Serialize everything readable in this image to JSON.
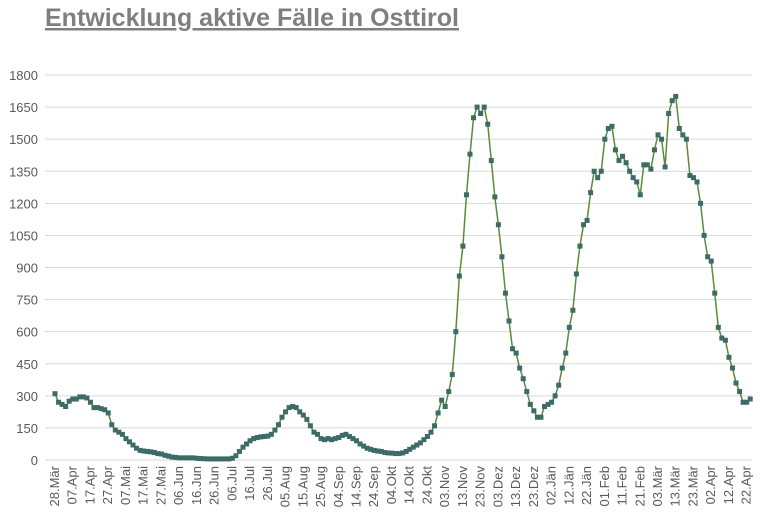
{
  "chart_data": {
    "type": "line",
    "title": "Entwicklung aktive Fälle in Osttirol",
    "categories": [
      "28.Mär",
      null,
      null,
      null,
      null,
      "07.Apr",
      null,
      null,
      null,
      null,
      "17.Apr",
      null,
      null,
      null,
      null,
      "27.Apr",
      null,
      null,
      null,
      null,
      "07.Mai",
      null,
      null,
      null,
      null,
      "17.Mai",
      null,
      null,
      null,
      null,
      "27.Mai",
      null,
      null,
      null,
      null,
      "06.Jun",
      null,
      null,
      null,
      null,
      "16.Jun",
      null,
      null,
      null,
      null,
      "26.Jun",
      null,
      null,
      null,
      null,
      "06.Jul",
      null,
      null,
      null,
      null,
      "16.Jul",
      null,
      null,
      null,
      null,
      "26.Jul",
      null,
      null,
      null,
      null,
      "05.Aug",
      null,
      null,
      null,
      null,
      "15.Aug",
      null,
      null,
      null,
      null,
      "25.Aug",
      null,
      null,
      null,
      null,
      "04.Sep",
      null,
      null,
      null,
      null,
      "14.Sep",
      null,
      null,
      null,
      null,
      "24.Sep",
      null,
      null,
      null,
      null,
      "04.Okt",
      null,
      null,
      null,
      null,
      "14.Okt",
      null,
      null,
      null,
      null,
      "24.Okt",
      null,
      null,
      null,
      null,
      "03.Nov",
      null,
      null,
      null,
      null,
      "13.Nov",
      null,
      null,
      null,
      null,
      "23.Nov",
      null,
      null,
      null,
      null,
      "03.Dez",
      null,
      null,
      null,
      null,
      "13.Dez",
      null,
      null,
      null,
      null,
      "23.Dez",
      null,
      null,
      null,
      null,
      "02.Jän",
      null,
      null,
      null,
      null,
      "12.Jän",
      null,
      null,
      null,
      null,
      "22.Jän",
      null,
      null,
      null,
      null,
      "01.Feb",
      null,
      null,
      null,
      null,
      "11.Feb",
      null,
      null,
      null,
      null,
      "21.Feb",
      null,
      null,
      null,
      null,
      "03.Mär",
      null,
      null,
      null,
      null,
      "13.Mär",
      null,
      null,
      null,
      null,
      "23.Mär",
      null,
      null,
      null,
      null,
      "02.Apr",
      null,
      null,
      null,
      null,
      "12.Apr",
      null,
      null,
      null,
      null,
      "22.Apr",
      null
    ],
    "values": [
      310,
      270,
      260,
      250,
      275,
      285,
      285,
      295,
      295,
      290,
      270,
      245,
      245,
      240,
      235,
      220,
      165,
      140,
      130,
      120,
      100,
      85,
      70,
      55,
      45,
      42,
      40,
      38,
      35,
      30,
      28,
      22,
      18,
      14,
      12,
      10,
      10,
      10,
      10,
      10,
      8,
      7,
      6,
      5,
      5,
      5,
      5,
      5,
      5,
      5,
      8,
      20,
      40,
      60,
      75,
      90,
      100,
      105,
      108,
      110,
      112,
      120,
      140,
      165,
      200,
      225,
      245,
      250,
      245,
      225,
      210,
      190,
      160,
      130,
      120,
      100,
      95,
      100,
      95,
      100,
      105,
      115,
      120,
      110,
      100,
      90,
      75,
      65,
      55,
      50,
      45,
      42,
      40,
      35,
      33,
      32,
      30,
      30,
      33,
      40,
      50,
      60,
      70,
      80,
      95,
      110,
      130,
      160,
      220,
      280,
      250,
      320,
      400,
      600,
      860,
      1000,
      1240,
      1430,
      1600,
      1650,
      1620,
      1650,
      1570,
      1400,
      1230,
      1100,
      950,
      780,
      650,
      520,
      500,
      430,
      380,
      320,
      260,
      230,
      200,
      200,
      250,
      260,
      270,
      300,
      350,
      430,
      500,
      620,
      700,
      870,
      1000,
      1100,
      1120,
      1250,
      1350,
      1320,
      1350,
      1500,
      1550,
      1560,
      1450,
      1400,
      1420,
      1390,
      1350,
      1320,
      1300,
      1240,
      1380,
      1380,
      1360,
      1450,
      1520,
      1500,
      1370,
      1620,
      1680,
      1700,
      1550,
      1520,
      1500,
      1330,
      1320,
      1300,
      1200,
      1050,
      950,
      930,
      780,
      620,
      570,
      560,
      480,
      430,
      360,
      320,
      270,
      270,
      285
    ],
    "color": "#5b8a3c",
    "marker_color": "#3d6b66",
    "ylim": [
      0,
      1800
    ],
    "yticks": [
      0,
      150,
      300,
      450,
      600,
      750,
      900,
      1050,
      1200,
      1350,
      1500,
      1650,
      1800
    ],
    "grid": true
  }
}
